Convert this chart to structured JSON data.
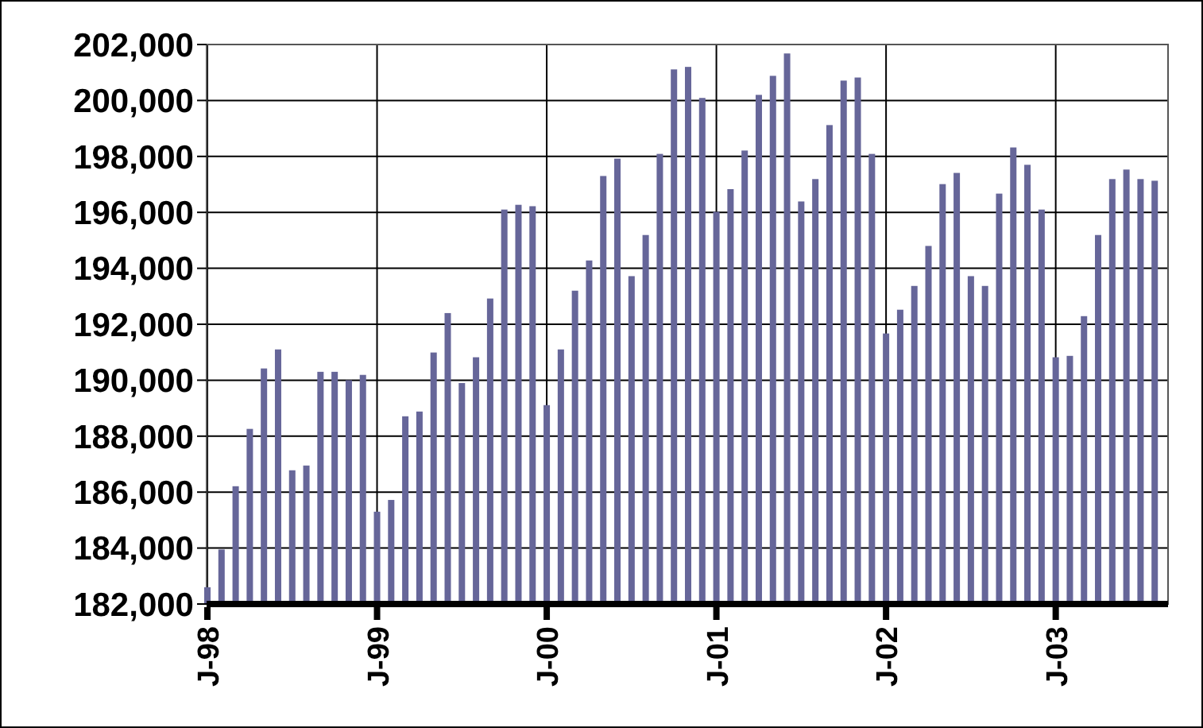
{
  "chart_data": {
    "type": "bar",
    "categories": [
      "J-98",
      null,
      null,
      null,
      null,
      null,
      null,
      null,
      null,
      null,
      null,
      null,
      "J-99",
      null,
      null,
      null,
      null,
      null,
      null,
      null,
      null,
      null,
      null,
      null,
      "J-00",
      null,
      null,
      null,
      null,
      null,
      null,
      null,
      null,
      null,
      null,
      null,
      "J-01",
      null,
      null,
      null,
      null,
      null,
      null,
      null,
      null,
      null,
      null,
      null,
      "J-02",
      null,
      null,
      null,
      null,
      null,
      null,
      null,
      null,
      null,
      null,
      null,
      "J-03",
      null,
      null,
      null,
      null,
      null,
      null,
      null
    ],
    "values": [
      182600,
      183950,
      186210,
      188260,
      190420,
      191100,
      186780,
      186950,
      190300,
      190300,
      190000,
      190190,
      185300,
      185720,
      188710,
      188880,
      190990,
      192400,
      189900,
      190820,
      192920,
      196100,
      196270,
      196220,
      189110,
      191100,
      193200,
      194280,
      197300,
      197920,
      193720,
      195190,
      198090,
      201110,
      201200,
      200090,
      196020,
      196830,
      198210,
      200200,
      200880,
      201680,
      196390,
      197190,
      199120,
      200710,
      200820,
      198090,
      191670,
      192520,
      193370,
      194800,
      197010,
      197410,
      193720,
      193370,
      196670,
      198320,
      197700,
      196100,
      190820,
      190870,
      192290,
      195190,
      197190,
      197530,
      197190,
      197130
    ],
    "color": "#666699",
    "ylim": [
      182000,
      202000
    ],
    "yticks": [
      {
        "value": 182000,
        "label": "182,000"
      },
      {
        "value": 184000,
        "label": "184,000"
      },
      {
        "value": 186000,
        "label": "186,000"
      },
      {
        "value": 188000,
        "label": "188,000"
      },
      {
        "value": 190000,
        "label": "190,000"
      },
      {
        "value": 192000,
        "label": "192,000"
      },
      {
        "value": 194000,
        "label": "194,000"
      },
      {
        "value": 196000,
        "label": "196,000"
      },
      {
        "value": 198000,
        "label": "198,000"
      },
      {
        "value": 200000,
        "label": "200,000"
      },
      {
        "value": 202000,
        "label": "202,000"
      }
    ],
    "grid": true
  }
}
